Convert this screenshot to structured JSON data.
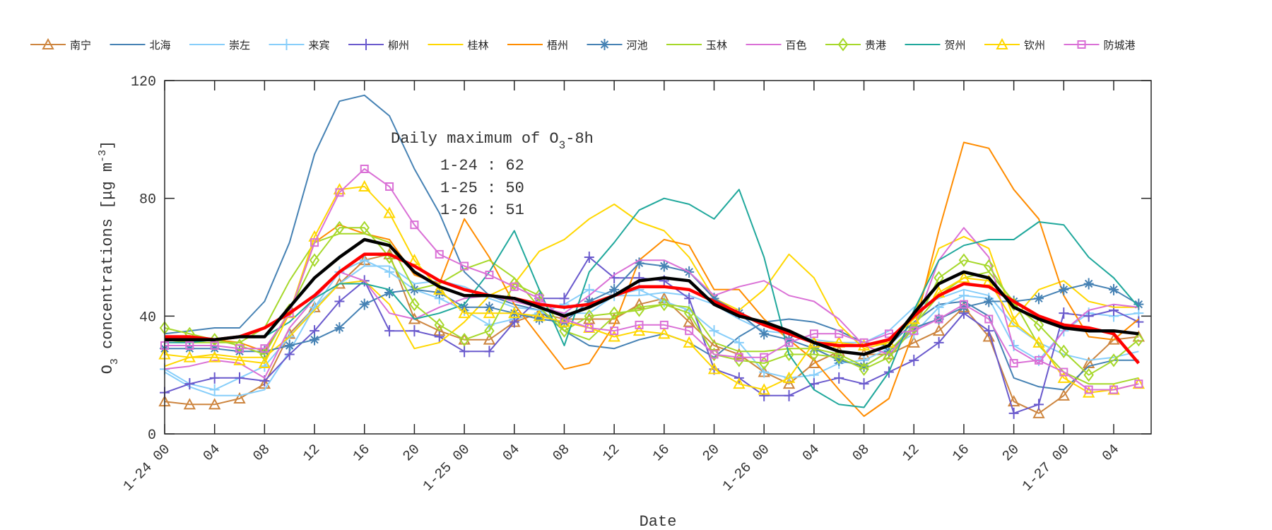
{
  "chart_data": {
    "type": "line",
    "title": "",
    "xlabel": "Date",
    "ylabel": "O3 concentrations [μg m-3]",
    "ylabel_parts": {
      "o": "O",
      "sub": "3",
      "mid": " concentrations [μg m",
      "sup": "-3",
      "end": "]"
    },
    "ylim": [
      0,
      120
    ],
    "xlim": [
      "1-24 00",
      "1-27 07"
    ],
    "grid": false,
    "legend_placement": "top",
    "y_ticks": [
      0,
      40,
      80,
      120
    ],
    "x_ticks": [
      "1-24 00",
      "04",
      "08",
      "12",
      "16",
      "20",
      "1-25 00",
      "04",
      "08",
      "12",
      "16",
      "20",
      "1-26 00",
      "04",
      "08",
      "12",
      "16",
      "20",
      "1-27 00",
      "04"
    ],
    "annotation": {
      "title_main": "Daily maximum of O",
      "title_sub": "3",
      "title_end": "-8h",
      "lines": [
        "1-24 : 62",
        "1-25 : 50",
        "1-26 : 51"
      ]
    },
    "x": [
      "1-24 00",
      "1-24 02",
      "1-24 04",
      "1-24 06",
      "1-24 08",
      "1-24 10",
      "1-24 12",
      "1-24 14",
      "1-24 16",
      "1-24 18",
      "1-24 20",
      "1-24 22",
      "1-25 00",
      "1-25 02",
      "1-25 04",
      "1-25 06",
      "1-25 08",
      "1-25 10",
      "1-25 12",
      "1-25 14",
      "1-25 16",
      "1-25 18",
      "1-25 20",
      "1-25 22",
      "1-26 00",
      "1-26 02",
      "1-26 04",
      "1-26 06",
      "1-26 08",
      "1-26 10",
      "1-26 12",
      "1-26 14",
      "1-26 16",
      "1-26 18",
      "1-26 20",
      "1-26 22",
      "1-27 00",
      "1-27 02",
      "1-27 04",
      "1-27 06"
    ],
    "series": [
      {
        "name": "南宁",
        "color": "#cd853f",
        "marker": "triangle",
        "values": [
          11,
          10,
          10,
          12,
          17,
          34,
          43,
          51,
          59,
          61,
          39,
          35,
          32,
          32,
          38,
          41,
          39,
          39,
          39,
          44,
          46,
          38,
          30,
          27,
          21,
          17,
          24,
          28,
          27,
          27,
          31,
          35,
          43,
          33,
          11,
          7,
          13,
          24,
          32,
          33
        ]
      },
      {
        "name": "北海",
        "color": "#4682b4",
        "marker": "none",
        "values": [
          34,
          35,
          36,
          36,
          45,
          65,
          95,
          113,
          115,
          108,
          90,
          75,
          55,
          47,
          44,
          42,
          35,
          30,
          29,
          32,
          34,
          31,
          26,
          33,
          38,
          39,
          38,
          35,
          31,
          30,
          38,
          44,
          45,
          40,
          19,
          16,
          15,
          23,
          25,
          25
        ]
      },
      {
        "name": "崇左",
        "color": "#87cefa",
        "marker": "none",
        "values": [
          21,
          16,
          13,
          13,
          15,
          28,
          43,
          51,
          57,
          57,
          51,
          52,
          50,
          46,
          43,
          42,
          41,
          41,
          47,
          47,
          48,
          47,
          44,
          39,
          35,
          34,
          32,
          31,
          31,
          35,
          43,
          46,
          49,
          47,
          37,
          31,
          27,
          25,
          26,
          28
        ]
      },
      {
        "name": "来宾",
        "color": "#87cefa",
        "marker": "plus",
        "values": [
          22,
          17,
          15,
          19,
          23,
          33,
          43,
          55,
          59,
          55,
          49,
          46,
          42,
          37,
          39,
          41,
          44,
          49,
          47,
          49,
          45,
          42,
          35,
          31,
          21,
          19,
          20,
          24,
          25,
          29,
          34,
          43,
          47,
          46,
          30,
          25,
          35,
          41,
          40,
          41
        ]
      },
      {
        "name": "柳州",
        "color": "#6a5acd",
        "marker": "plus",
        "values": [
          14,
          17,
          19,
          19,
          18,
          27,
          35,
          45,
          52,
          35,
          35,
          33,
          28,
          28,
          38,
          46,
          46,
          60,
          53,
          53,
          52,
          46,
          22,
          19,
          13,
          13,
          17,
          19,
          17,
          21,
          25,
          31,
          41,
          35,
          7,
          10,
          41,
          40,
          42,
          38
        ]
      },
      {
        "name": "桂林",
        "color": "#ffd700",
        "marker": "none",
        "values": [
          23,
          26,
          27,
          26,
          26,
          33,
          42,
          51,
          52,
          44,
          29,
          31,
          38,
          47,
          51,
          62,
          66,
          73,
          78,
          72,
          69,
          60,
          46,
          42,
          49,
          61,
          53,
          37,
          29,
          31,
          40,
          63,
          67,
          63,
          39,
          49,
          52,
          45,
          43,
          43
        ]
      },
      {
        "name": "梧州",
        "color": "#ff8c00",
        "marker": "none",
        "values": [
          33,
          32,
          32,
          31,
          28,
          41,
          65,
          71,
          68,
          66,
          54,
          51,
          73,
          60,
          44,
          33,
          22,
          24,
          37,
          59,
          66,
          64,
          49,
          49,
          39,
          32,
          25,
          15,
          6,
          12,
          35,
          69,
          99,
          97,
          83,
          73,
          47,
          33,
          32,
          39
        ]
      },
      {
        "name": "河池",
        "color": "#4682b4",
        "marker": "asterisk",
        "values": [
          29,
          29,
          29,
          28,
          28,
          30,
          32,
          36,
          44,
          48,
          49,
          48,
          43,
          43,
          41,
          39,
          38,
          45,
          49,
          58,
          57,
          55,
          46,
          41,
          34,
          32,
          29,
          25,
          23,
          28,
          36,
          39,
          43,
          45,
          45,
          46,
          49,
          51,
          49,
          44
        ]
      },
      {
        "name": "玉林",
        "color": "#a6d82a",
        "marker": "none",
        "values": [
          32,
          31,
          31,
          31,
          36,
          52,
          65,
          68,
          68,
          65,
          49,
          51,
          56,
          59,
          53,
          43,
          35,
          32,
          40,
          43,
          44,
          43,
          31,
          28,
          28,
          29,
          29,
          27,
          23,
          28,
          37,
          47,
          53,
          55,
          45,
          30,
          21,
          17,
          17,
          19
        ]
      },
      {
        "name": "百色",
        "color": "#da70d6",
        "marker": "none",
        "values": [
          22,
          23,
          25,
          24,
          19,
          36,
          46,
          55,
          52,
          41,
          39,
          43,
          46,
          47,
          45,
          43,
          41,
          47,
          54,
          59,
          59,
          55,
          47,
          50,
          52,
          47,
          45,
          39,
          30,
          27,
          36,
          59,
          70,
          60,
          29,
          24,
          35,
          42,
          44,
          43
        ]
      },
      {
        "name": "贵港",
        "color": "#a6d82a",
        "marker": "diamond",
        "values": [
          36,
          34,
          32,
          30,
          27,
          42,
          59,
          70,
          70,
          60,
          44,
          37,
          32,
          35,
          51,
          47,
          35,
          40,
          41,
          42,
          44,
          41,
          27,
          25,
          24,
          27,
          27,
          26,
          22,
          26,
          36,
          53,
          59,
          57,
          44,
          37,
          28,
          20,
          25,
          32
        ]
      },
      {
        "name": "贺州",
        "color": "#20a89c",
        "marker": "none",
        "values": [
          31,
          31,
          32,
          33,
          33,
          38,
          46,
          51,
          51,
          49,
          39,
          41,
          44,
          55,
          69,
          49,
          30,
          55,
          65,
          76,
          80,
          78,
          73,
          83,
          60,
          27,
          15,
          10,
          9,
          21,
          42,
          59,
          64,
          66,
          66,
          72,
          71,
          60,
          53,
          43
        ]
      },
      {
        "name": "钦州",
        "color": "#ffd700",
        "marker": "triangle",
        "values": [
          27,
          26,
          26,
          25,
          24,
          41,
          67,
          83,
          84,
          75,
          59,
          49,
          41,
          41,
          41,
          40,
          38,
          36,
          33,
          35,
          34,
          31,
          22,
          17,
          15,
          19,
          31,
          31,
          30,
          31,
          39,
          48,
          53,
          52,
          38,
          31,
          19,
          14,
          15,
          17
        ]
      },
      {
        "name": "防城港",
        "color": "#da70d6",
        "marker": "square",
        "values": [
          30,
          30,
          30,
          29,
          29,
          41,
          65,
          82,
          90,
          84,
          71,
          61,
          57,
          54,
          50,
          46,
          39,
          36,
          35,
          37,
          37,
          35,
          27,
          26,
          26,
          31,
          34,
          34,
          31,
          34,
          35,
          39,
          44,
          39,
          24,
          25,
          21,
          15,
          15,
          17
        ]
      },
      {
        "color": "#ff0000",
        "marker": "none",
        "thick": true,
        "values": [
          33,
          33,
          32,
          33,
          36,
          41,
          47,
          55,
          61,
          61,
          57,
          52,
          49,
          47,
          46,
          44,
          43,
          44,
          47,
          50,
          50,
          49,
          45,
          41,
          37,
          34,
          31,
          30,
          30,
          32,
          40,
          47,
          51,
          50,
          45,
          40,
          37,
          36,
          34,
          24
        ]
      },
      {
        "color": "#000000",
        "marker": "none",
        "thick": true,
        "values": [
          32,
          32,
          32,
          33,
          33,
          43,
          53,
          60,
          66,
          64,
          55,
          50,
          47,
          47,
          46,
          43,
          40,
          43,
          47,
          52,
          53,
          52,
          44,
          40,
          38,
          35,
          31,
          28,
          27,
          30,
          41,
          51,
          55,
          53,
          43,
          39,
          36,
          35,
          35,
          34
        ]
      }
    ]
  }
}
